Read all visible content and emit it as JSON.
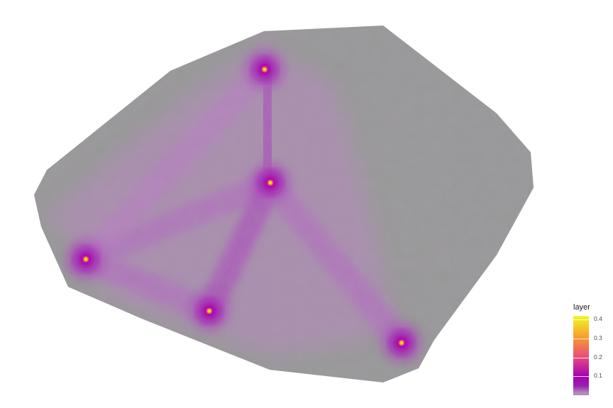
{
  "chart_data": {
    "type": "heatmap",
    "title": "",
    "xlabel": "",
    "ylabel": "",
    "value_range": [
      0,
      0.42
    ],
    "base_color": "#999999",
    "colormap": "plasma",
    "color_stops": [
      {
        "value": 0.0,
        "color": "#999999"
      },
      {
        "value": 0.01,
        "color": "#b98fc0"
      },
      {
        "value": 0.05,
        "color": "#9a1fb2"
      },
      {
        "value": 0.1,
        "color": "#a600b0"
      },
      {
        "value": 0.2,
        "color": "#e64a80"
      },
      {
        "value": 0.3,
        "color": "#f8962f"
      },
      {
        "value": 0.42,
        "color": "#f0f921"
      }
    ],
    "hotspots": [
      {
        "id": "top",
        "peak": 0.42
      },
      {
        "id": "center",
        "peak": 0.42
      },
      {
        "id": "left",
        "peak": 0.42
      },
      {
        "id": "bottom-middle",
        "peak": 0.42
      },
      {
        "id": "bottom-right",
        "peak": 0.42
      }
    ],
    "corridors": [
      {
        "from": "top",
        "to": "center",
        "level": 0.03
      },
      {
        "from": "center",
        "to": "left",
        "level": 0.02
      },
      {
        "from": "center",
        "to": "bottom-middle",
        "level": 0.03
      },
      {
        "from": "center",
        "to": "bottom-right",
        "level": 0.02
      },
      {
        "from": "left",
        "to": "bottom-middle",
        "level": 0.02
      },
      {
        "from": "top",
        "to": "left",
        "level": 0.015
      }
    ],
    "legend": {
      "title": "layer",
      "position": "bottom-right",
      "ticks": [
        {
          "value": 0.1,
          "label": "0.1"
        },
        {
          "value": 0.2,
          "label": "0.2"
        },
        {
          "value": 0.3,
          "label": "0.3"
        },
        {
          "value": 0.4,
          "label": "0.4"
        }
      ]
    }
  }
}
